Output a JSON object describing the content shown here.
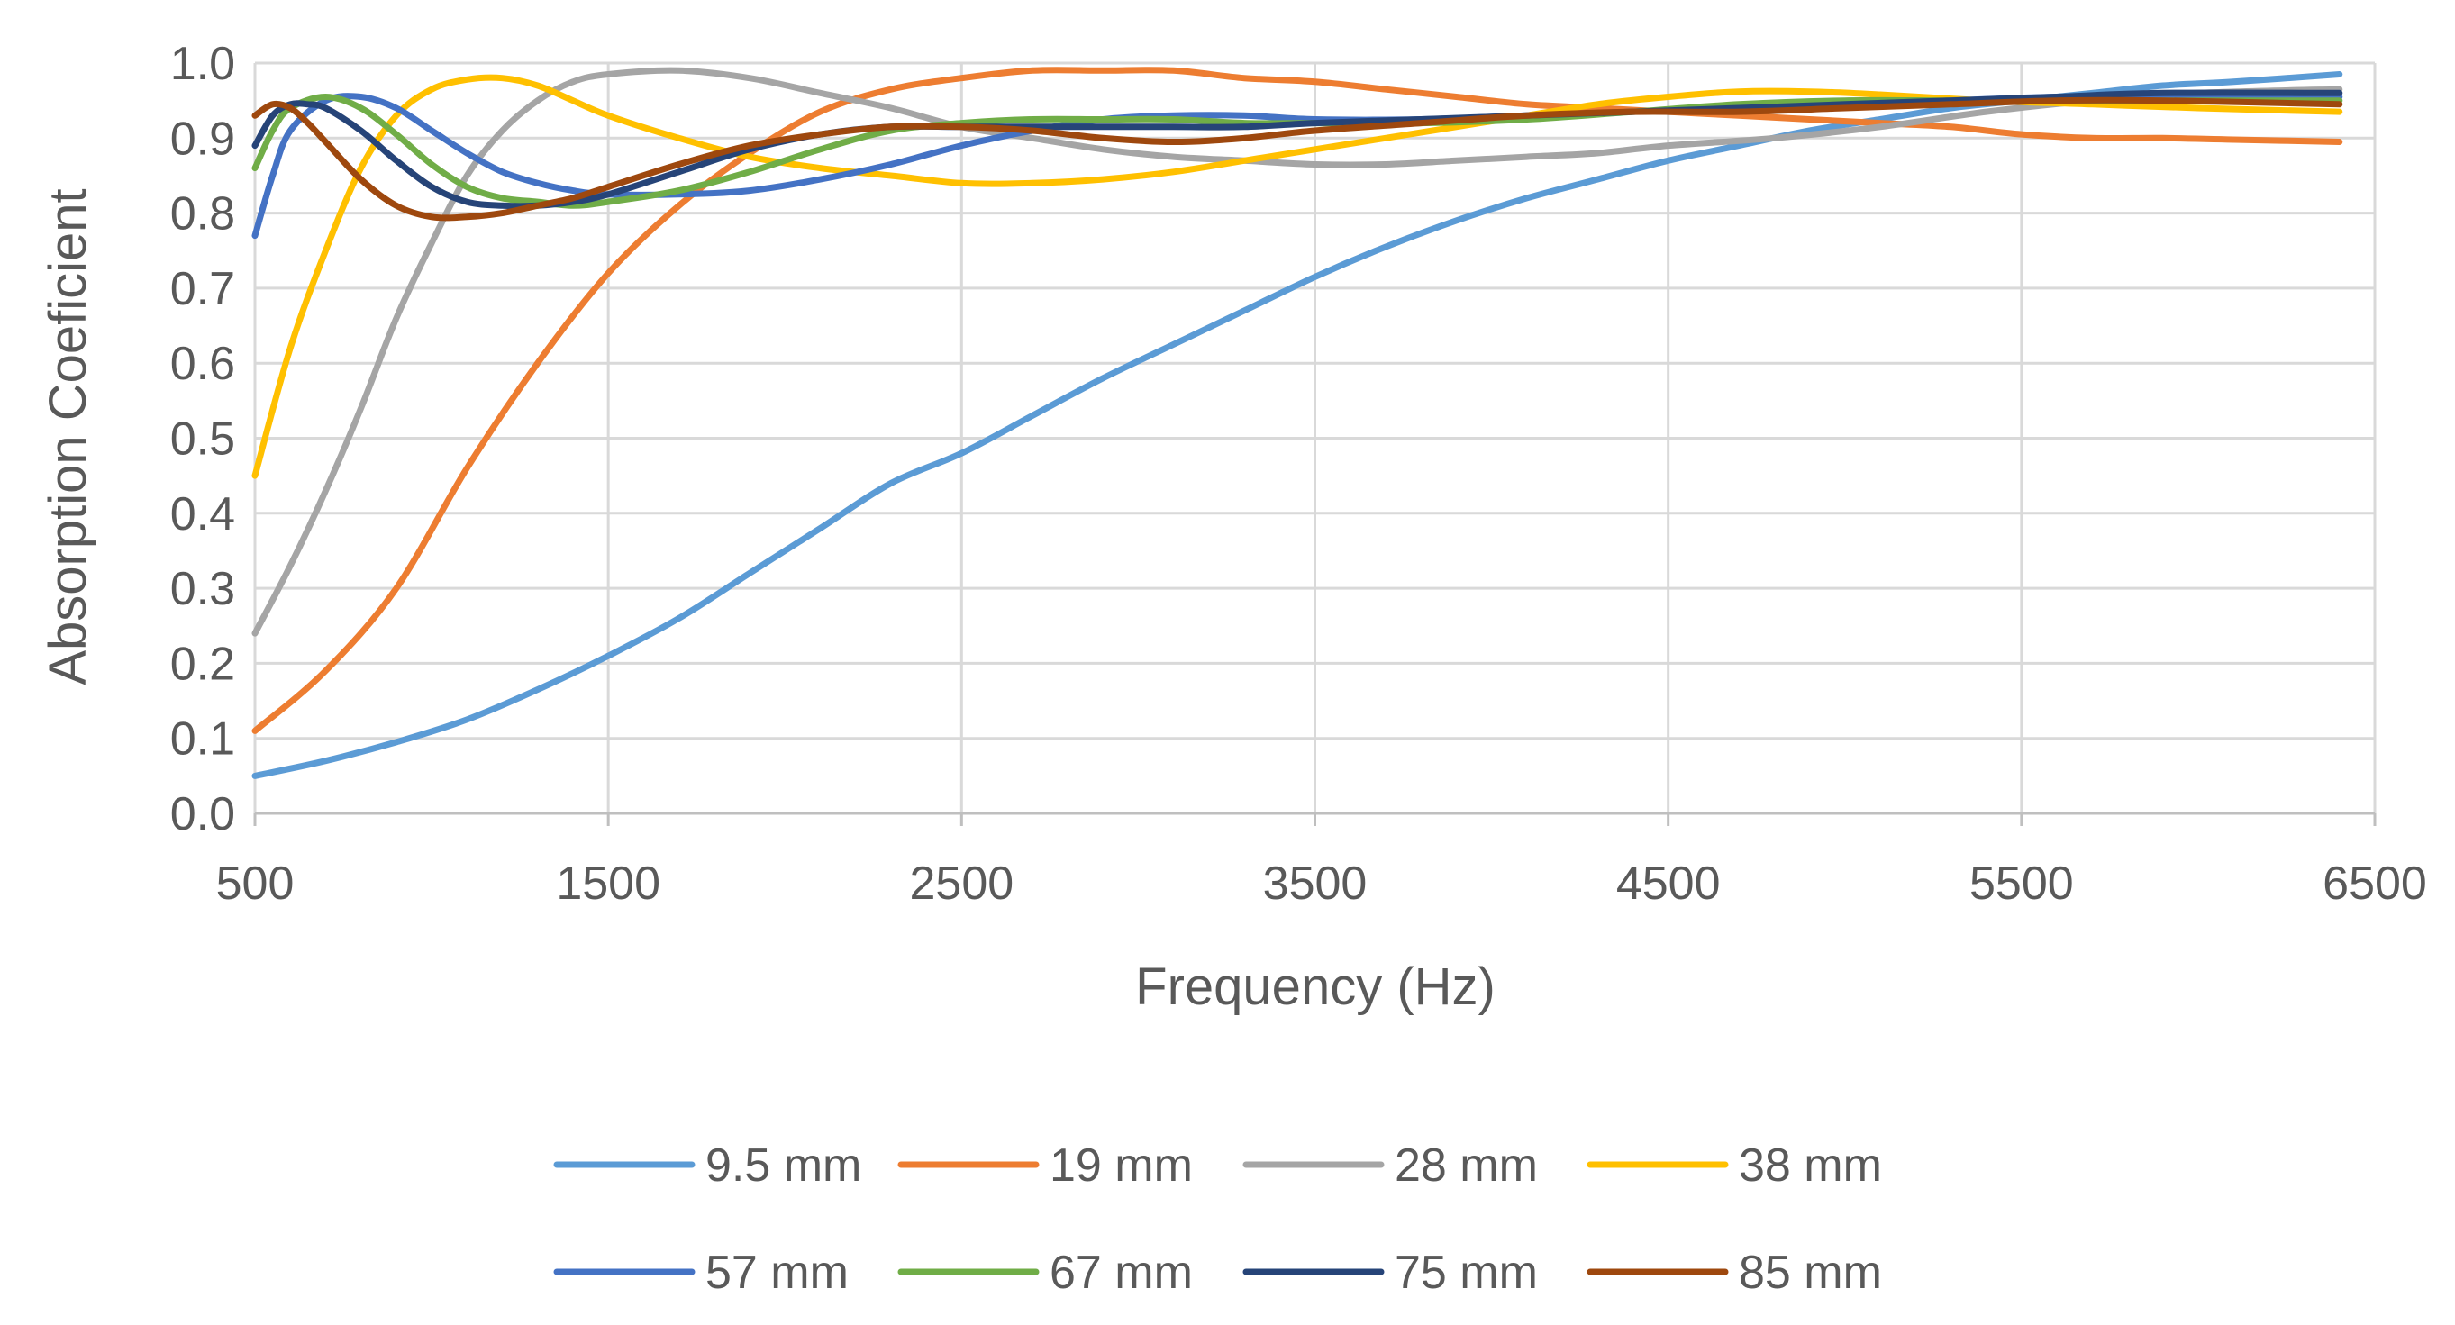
{
  "chart_data": {
    "type": "line",
    "title": "",
    "xlabel": "Frequency (Hz)",
    "ylabel": "Absorption Coeficient",
    "xlim": [
      500,
      6500
    ],
    "ylim": [
      0.0,
      1.0
    ],
    "x_ticks": [
      500,
      1500,
      2500,
      3500,
      4500,
      5500,
      6500
    ],
    "x_tick_labels": [
      "500",
      "1500",
      "2500",
      "3500",
      "4500",
      "5500",
      "6500"
    ],
    "y_ticks": [
      0.0,
      0.1,
      0.2,
      0.3,
      0.4,
      0.5,
      0.6,
      0.7,
      0.8,
      0.9,
      1.0
    ],
    "y_tick_labels": [
      "0.0",
      "0.1",
      "0.2",
      "0.3",
      "0.4",
      "0.5",
      "0.6",
      "0.7",
      "0.8",
      "0.9",
      "1.0"
    ],
    "grid": true,
    "legend_position": "bottom",
    "series": [
      {
        "name": "9.5 mm",
        "color": "#5B9BD5",
        "x": [
          500,
          700,
          900,
          1100,
          1300,
          1500,
          1700,
          1900,
          2100,
          2300,
          2500,
          2700,
          2900,
          3100,
          3300,
          3500,
          3700,
          3900,
          4100,
          4300,
          4500,
          4700,
          4900,
          5100,
          5300,
          5500,
          5700,
          5900,
          6100,
          6400
        ],
        "y": [
          0.05,
          0.07,
          0.095,
          0.125,
          0.165,
          0.21,
          0.26,
          0.32,
          0.38,
          0.44,
          0.48,
          0.53,
          0.58,
          0.625,
          0.67,
          0.715,
          0.755,
          0.79,
          0.82,
          0.845,
          0.87,
          0.89,
          0.91,
          0.925,
          0.94,
          0.95,
          0.96,
          0.97,
          0.975,
          0.985
        ]
      },
      {
        "name": "19 mm",
        "color": "#ED7D31",
        "x": [
          500,
          700,
          900,
          1100,
          1300,
          1500,
          1700,
          1900,
          2100,
          2300,
          2500,
          2700,
          2900,
          3100,
          3300,
          3500,
          3700,
          3900,
          4100,
          4300,
          4500,
          4700,
          4900,
          5100,
          5300,
          5500,
          5700,
          5900,
          6100,
          6400
        ],
        "y": [
          0.11,
          0.19,
          0.3,
          0.46,
          0.6,
          0.72,
          0.81,
          0.88,
          0.935,
          0.965,
          0.98,
          0.99,
          0.99,
          0.99,
          0.98,
          0.975,
          0.965,
          0.955,
          0.945,
          0.94,
          0.935,
          0.93,
          0.925,
          0.92,
          0.915,
          0.905,
          0.9,
          0.9,
          0.898,
          0.895
        ]
      },
      {
        "name": "28 mm",
        "color": "#A5A5A5",
        "x": [
          500,
          600,
          700,
          800,
          900,
          1000,
          1100,
          1200,
          1300,
          1400,
          1500,
          1700,
          1900,
          2100,
          2300,
          2500,
          2700,
          2900,
          3100,
          3300,
          3500,
          3700,
          3900,
          4100,
          4300,
          4500,
          4800,
          5100,
          5400,
          5700,
          6000,
          6400
        ],
        "y": [
          0.24,
          0.33,
          0.43,
          0.54,
          0.66,
          0.76,
          0.85,
          0.91,
          0.95,
          0.975,
          0.985,
          0.99,
          0.98,
          0.96,
          0.94,
          0.915,
          0.9,
          0.885,
          0.875,
          0.87,
          0.865,
          0.865,
          0.87,
          0.875,
          0.88,
          0.89,
          0.9,
          0.915,
          0.935,
          0.95,
          0.96,
          0.965
        ]
      },
      {
        "name": "38 mm",
        "color": "#FFC000",
        "x": [
          500,
          600,
          700,
          800,
          900,
          1000,
          1100,
          1200,
          1300,
          1400,
          1500,
          1700,
          1900,
          2100,
          2300,
          2500,
          2700,
          2900,
          3100,
          3300,
          3500,
          3700,
          3900,
          4100,
          4300,
          4500,
          4700,
          4900,
          5100,
          5400,
          5700,
          6000,
          6400
        ],
        "y": [
          0.45,
          0.62,
          0.75,
          0.86,
          0.93,
          0.965,
          0.978,
          0.98,
          0.97,
          0.95,
          0.93,
          0.9,
          0.875,
          0.86,
          0.85,
          0.84,
          0.84,
          0.845,
          0.855,
          0.87,
          0.885,
          0.9,
          0.915,
          0.93,
          0.945,
          0.955,
          0.962,
          0.962,
          0.958,
          0.95,
          0.945,
          0.94,
          0.935
        ]
      },
      {
        "name": "57 mm",
        "color": "#4472C4",
        "x": [
          500,
          550,
          600,
          700,
          800,
          900,
          1000,
          1100,
          1200,
          1300,
          1400,
          1500,
          1700,
          1900,
          2100,
          2300,
          2500,
          2700,
          2900,
          3100,
          3300,
          3500,
          3800,
          4100,
          4400,
          4700,
          5000,
          5300,
          5600,
          5900,
          6400
        ],
        "y": [
          0.77,
          0.85,
          0.91,
          0.95,
          0.955,
          0.94,
          0.91,
          0.88,
          0.855,
          0.84,
          0.83,
          0.825,
          0.825,
          0.83,
          0.845,
          0.865,
          0.89,
          0.91,
          0.925,
          0.93,
          0.93,
          0.925,
          0.925,
          0.93,
          0.935,
          0.94,
          0.945,
          0.95,
          0.955,
          0.955,
          0.955
        ]
      },
      {
        "name": "67 mm",
        "color": "#70AD47",
        "x": [
          500,
          550,
          600,
          700,
          800,
          900,
          1000,
          1100,
          1200,
          1300,
          1400,
          1500,
          1700,
          1900,
          2100,
          2300,
          2500,
          2700,
          2900,
          3100,
          3300,
          3500,
          3800,
          4100,
          4400,
          4700,
          5000,
          5300,
          5600,
          5900,
          6400
        ],
        "y": [
          0.86,
          0.91,
          0.94,
          0.955,
          0.94,
          0.905,
          0.865,
          0.835,
          0.82,
          0.815,
          0.81,
          0.815,
          0.83,
          0.855,
          0.885,
          0.91,
          0.92,
          0.925,
          0.925,
          0.925,
          0.92,
          0.92,
          0.92,
          0.925,
          0.935,
          0.945,
          0.95,
          0.95,
          0.95,
          0.95,
          0.95
        ]
      },
      {
        "name": "75 mm",
        "color": "#264478",
        "x": [
          500,
          550,
          600,
          650,
          700,
          800,
          900,
          1000,
          1100,
          1200,
          1300,
          1400,
          1500,
          1700,
          1900,
          2100,
          2300,
          2500,
          2700,
          2900,
          3100,
          3300,
          3500,
          3800,
          4100,
          4400,
          4700,
          5000,
          5300,
          5600,
          5900,
          6400
        ],
        "y": [
          0.89,
          0.93,
          0.945,
          0.945,
          0.94,
          0.91,
          0.87,
          0.835,
          0.815,
          0.81,
          0.81,
          0.815,
          0.825,
          0.855,
          0.885,
          0.905,
          0.915,
          0.915,
          0.915,
          0.915,
          0.915,
          0.915,
          0.92,
          0.925,
          0.93,
          0.935,
          0.94,
          0.945,
          0.95,
          0.955,
          0.96,
          0.96
        ]
      },
      {
        "name": "85 mm",
        "color": "#9E480E",
        "x": [
          500,
          550,
          600,
          650,
          700,
          800,
          900,
          1000,
          1100,
          1200,
          1300,
          1400,
          1500,
          1700,
          1900,
          2100,
          2300,
          2500,
          2700,
          2900,
          3100,
          3300,
          3500,
          3800,
          4100,
          4400,
          4700,
          5000,
          5300,
          5600,
          5900,
          6400
        ],
        "y": [
          0.93,
          0.945,
          0.94,
          0.92,
          0.895,
          0.845,
          0.81,
          0.795,
          0.795,
          0.8,
          0.81,
          0.82,
          0.835,
          0.865,
          0.89,
          0.905,
          0.915,
          0.915,
          0.91,
          0.9,
          0.895,
          0.9,
          0.91,
          0.92,
          0.93,
          0.935,
          0.935,
          0.94,
          0.945,
          0.95,
          0.95,
          0.945
        ]
      }
    ]
  }
}
